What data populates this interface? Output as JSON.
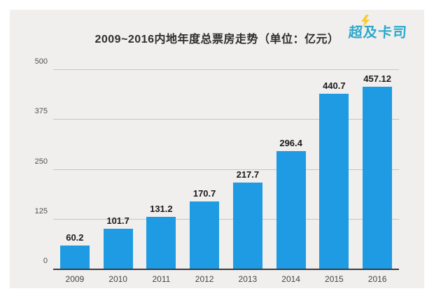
{
  "page": {
    "background": "#ffffff",
    "panel_background": "#f0efee"
  },
  "header": {
    "title": "2009~2016内地年度总票房走势（单位：亿元）",
    "logo": {
      "text": "超及卡司",
      "text_color": "#2ea7c9",
      "bolt_color": "#ffc92c",
      "icon": "lightning-icon"
    }
  },
  "chart_data": {
    "type": "bar",
    "title": "2009~2016内地年度总票房走势（单位：亿元）",
    "categories": [
      "2009",
      "2010",
      "2011",
      "2012",
      "2013",
      "2014",
      "2015",
      "2016"
    ],
    "values": [
      60.2,
      101.7,
      131.2,
      170.7,
      217.7,
      296.4,
      440.7,
      457.12
    ],
    "value_labels": [
      "60.2",
      "101.7",
      "131.2",
      "170.7",
      "217.7",
      "296.4",
      "440.7",
      "457.12"
    ],
    "xlabel": "",
    "ylabel": "",
    "unit": "亿元",
    "ylim": [
      0,
      500
    ],
    "yticks": [
      0,
      125,
      250,
      375,
      500
    ],
    "grid": "horizontal",
    "legend_position": "none",
    "bar_color": "#1e9be2",
    "gridline_color": "#c6c5c2",
    "axis_line_color": "#3a3a3a"
  }
}
